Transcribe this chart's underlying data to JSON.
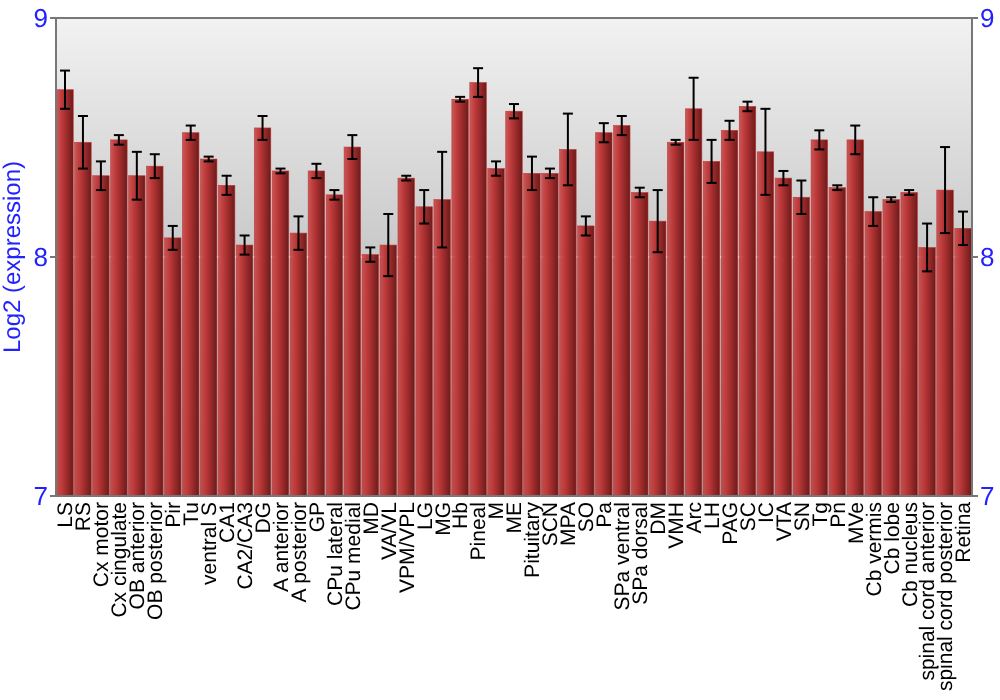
{
  "chart_data": {
    "type": "bar",
    "ylabel": "Log2 (expression)",
    "categories": [
      "LS",
      "RS",
      "Cx motor",
      "Cx cingulate",
      "OB anterior",
      "OB posterior",
      "Pir",
      "Tu",
      "ventral S",
      "CA1",
      "CA2/CA3",
      "DG",
      "A anterior",
      "A posterior",
      "GP",
      "CPu lateral",
      "CPu medial",
      "MD",
      "VA/VL",
      "VPM/VPL",
      "LG",
      "MG",
      "Hb",
      "Pineal",
      "M",
      "ME",
      "Pituitary",
      "SCN",
      "MPA",
      "SO",
      "Pa",
      "SPa ventral",
      "SPa dorsal",
      "DM",
      "VMH",
      "Arc",
      "LH",
      "PAG",
      "SC",
      "IC",
      "VTA",
      "SN",
      "Tg",
      "Pn",
      "MVe",
      "Cb vermis",
      "Cb lobe",
      "Cb nucleus",
      "spinal cord anterior",
      "spinal cord posterior",
      "Retina"
    ],
    "values": [
      8.7,
      8.48,
      8.34,
      8.49,
      8.34,
      8.38,
      8.08,
      8.52,
      8.41,
      8.3,
      8.05,
      8.54,
      8.36,
      8.1,
      8.36,
      8.26,
      8.46,
      8.01,
      8.05,
      8.33,
      8.21,
      8.24,
      8.66,
      8.73,
      8.37,
      8.61,
      8.35,
      8.35,
      8.45,
      8.13,
      8.52,
      8.55,
      8.27,
      8.15,
      8.48,
      8.62,
      8.4,
      8.53,
      8.63,
      8.44,
      8.33,
      8.25,
      8.49,
      8.29,
      8.49,
      8.19,
      8.24,
      8.27,
      8.04,
      8.28,
      8.12
    ],
    "errors": [
      0.08,
      0.11,
      0.06,
      0.02,
      0.1,
      0.05,
      0.05,
      0.03,
      0.01,
      0.04,
      0.04,
      0.05,
      0.01,
      0.07,
      0.03,
      0.02,
      0.05,
      0.03,
      0.13,
      0.01,
      0.07,
      0.2,
      0.01,
      0.06,
      0.03,
      0.03,
      0.07,
      0.02,
      0.15,
      0.04,
      0.04,
      0.04,
      0.02,
      0.13,
      0.01,
      0.13,
      0.09,
      0.04,
      0.02,
      0.18,
      0.03,
      0.07,
      0.04,
      0.01,
      0.06,
      0.06,
      0.01,
      0.01,
      0.1,
      0.18,
      0.07
    ],
    "color": "#c03a3a",
    "ylim": [
      7,
      9
    ],
    "yticks": [
      7,
      8,
      9
    ],
    "y2lim": [
      7,
      9
    ],
    "y2ticks": [
      7,
      8,
      9
    ],
    "grid": "y"
  }
}
